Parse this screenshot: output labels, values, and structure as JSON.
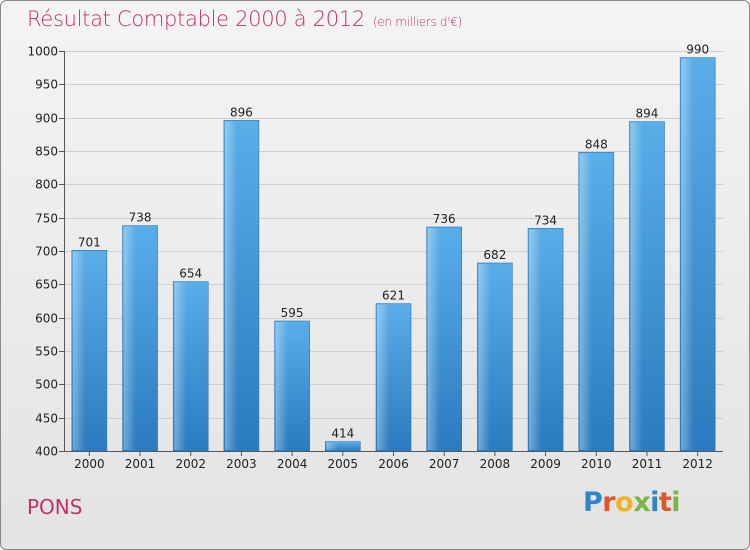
{
  "chart_data": {
    "type": "bar",
    "title": "Résultat Comptable 2000 à 2012",
    "subtitle": "(en milliers d'€)",
    "categories": [
      "2000",
      "2001",
      "2002",
      "2003",
      "2004",
      "2005",
      "2006",
      "2007",
      "2008",
      "2009",
      "2010",
      "2011",
      "2012"
    ],
    "values": [
      701,
      738,
      654,
      896,
      595,
      414,
      621,
      736,
      682,
      734,
      848,
      894,
      990
    ],
    "ylim": [
      400,
      1000
    ],
    "yticks": [
      400,
      450,
      500,
      550,
      600,
      650,
      700,
      750,
      800,
      850,
      900,
      950,
      1000
    ],
    "xlabel": "",
    "ylabel": "",
    "grid": true,
    "bar_color": "#3a8fd2"
  },
  "footer": {
    "commune": "PONS",
    "logo_letters": [
      {
        "ch": "P",
        "color": "#2e86c9"
      },
      {
        "ch": "r",
        "color": "#e0562a"
      },
      {
        "ch": "o",
        "color": "#f0b323"
      },
      {
        "ch": "x",
        "color": "#7bb542"
      },
      {
        "ch": "i",
        "color": "#2e86c9"
      },
      {
        "ch": "t",
        "color": "#e0562a"
      },
      {
        "ch": "i",
        "color": "#7bb542"
      }
    ]
  }
}
